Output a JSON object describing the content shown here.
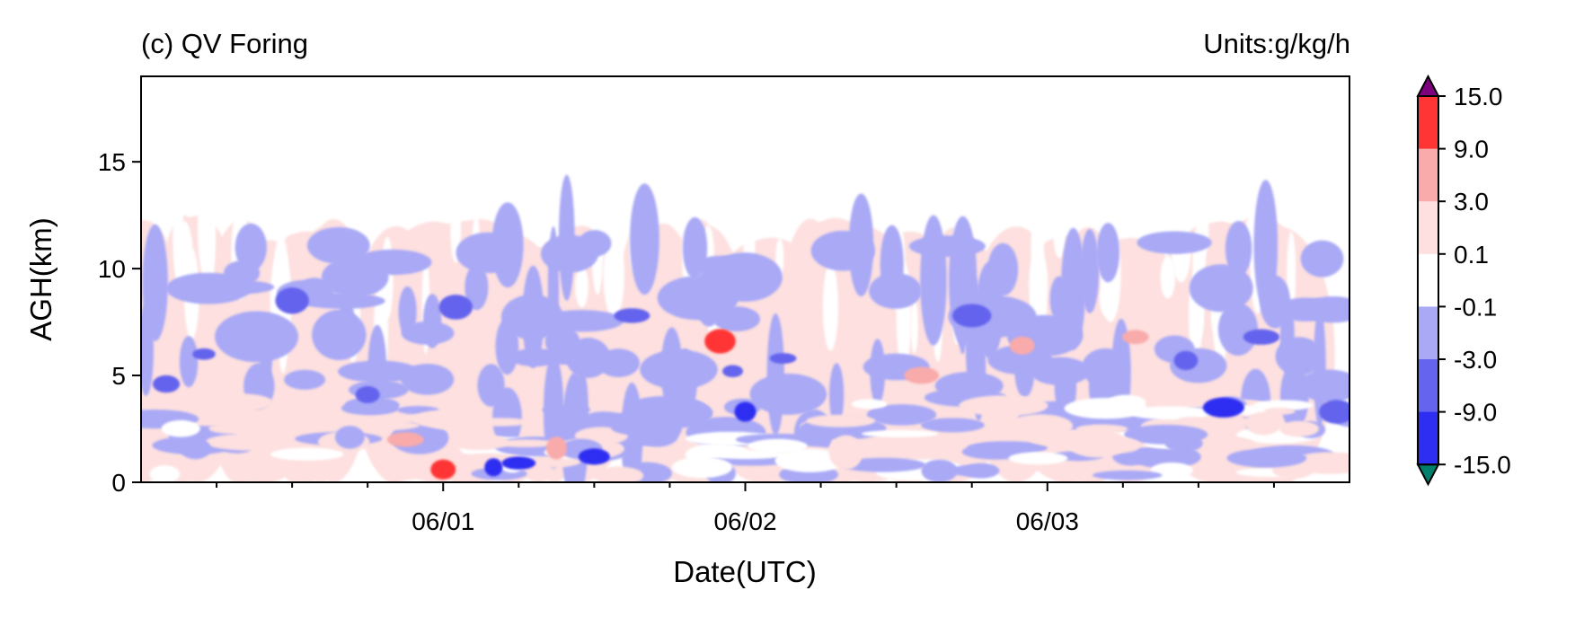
{
  "chart_data": {
    "type": "heatmap",
    "panel_title": "(c) QV Foring",
    "units": "Units:g/kg/h",
    "xlabel": "Date(UTC)",
    "ylabel": "AGH(km)",
    "xlim": [
      "05/31 00:00",
      "06/04 00:00"
    ],
    "ylim": [
      0,
      19
    ],
    "x_ticks": [
      "06/01",
      "06/02",
      "06/03"
    ],
    "y_ticks": [
      "0",
      "5",
      "10",
      "15"
    ],
    "colorbar": {
      "extend": "both",
      "levels": [
        -15.0,
        -9.0,
        -3.0,
        -0.1,
        0.1,
        3.0,
        9.0,
        15.0
      ],
      "tick_labels": [
        "15.0",
        "9.0",
        "3.0",
        "0.1",
        "-0.1",
        "-3.0",
        "-9.0",
        "-15.0"
      ],
      "colors": {
        "under": "#00806b",
        "below_minus9": "#2e2ef2",
        "minus9_to_minus3": "#6464ee",
        "minus3_to_minus01": "#a9a9f6",
        "neutral": "#ffffff",
        "p01_to_3": "#fde0df",
        "p3_to_9": "#f9aaaa",
        "p9_to_15": "#ff3535",
        "over": "#7f007f"
      }
    },
    "patches": [
      {
        "x": "05/31 02:00",
        "z": 4.6,
        "v": -2
      },
      {
        "x": "05/31 05:00",
        "z": 6.0,
        "v": -2
      },
      {
        "x": "05/31 08:00",
        "z": 9.8,
        "v": -1
      },
      {
        "x": "05/31 12:00",
        "z": 8.5,
        "v": -2
      },
      {
        "x": "05/31 13:00",
        "z": 4.8,
        "v": -1
      },
      {
        "x": "05/31 17:00",
        "z": 9.6,
        "v": -1
      },
      {
        "x": "05/31 18:00",
        "z": 4.1,
        "v": -2
      },
      {
        "x": "05/31 21:00",
        "z": 2.0,
        "v": 2
      },
      {
        "x": "06/01 00:00",
        "z": 0.6,
        "v": 3
      },
      {
        "x": "06/01 01:00",
        "z": 8.2,
        "v": -2
      },
      {
        "x": "06/01 04:00",
        "z": 0.7,
        "v": -3
      },
      {
        "x": "06/01 06:00",
        "z": 0.9,
        "v": -3
      },
      {
        "x": "06/01 09:00",
        "z": 1.6,
        "v": 2
      },
      {
        "x": "06/01 12:00",
        "z": 1.2,
        "v": -3
      },
      {
        "x": "06/01 15:00",
        "z": 7.8,
        "v": -2
      },
      {
        "x": "06/01 17:00",
        "z": 2.2,
        "v": -1
      },
      {
        "x": "06/01 22:00",
        "z": 6.6,
        "v": 3
      },
      {
        "x": "06/01 23:00",
        "z": 5.2,
        "v": -2
      },
      {
        "x": "06/02 00:00",
        "z": 3.3,
        "v": -3
      },
      {
        "x": "06/02 03:00",
        "z": 5.8,
        "v": -2
      },
      {
        "x": "06/02 08:00",
        "z": 1.4,
        "v": 1
      },
      {
        "x": "06/02 12:00",
        "z": 5.4,
        "v": -1
      },
      {
        "x": "06/02 14:00",
        "z": 5.0,
        "v": 2
      },
      {
        "x": "06/02 18:00",
        "z": 7.8,
        "v": -2
      },
      {
        "x": "06/02 22:00",
        "z": 6.4,
        "v": 2
      },
      {
        "x": "06/03 01:00",
        "z": 5.2,
        "v": -1
      },
      {
        "x": "06/03 04:00",
        "z": 1.8,
        "v": 1
      },
      {
        "x": "06/03 07:00",
        "z": 6.8,
        "v": 2
      },
      {
        "x": "06/03 11:00",
        "z": 5.7,
        "v": -2
      },
      {
        "x": "06/03 14:00",
        "z": 3.5,
        "v": -3
      },
      {
        "x": "06/03 17:00",
        "z": 6.8,
        "v": -2
      },
      {
        "x": "06/03 20:00",
        "z": 2.5,
        "v": 1
      },
      {
        "x": "06/03 23:00",
        "z": 3.3,
        "v": -2
      }
    ]
  }
}
